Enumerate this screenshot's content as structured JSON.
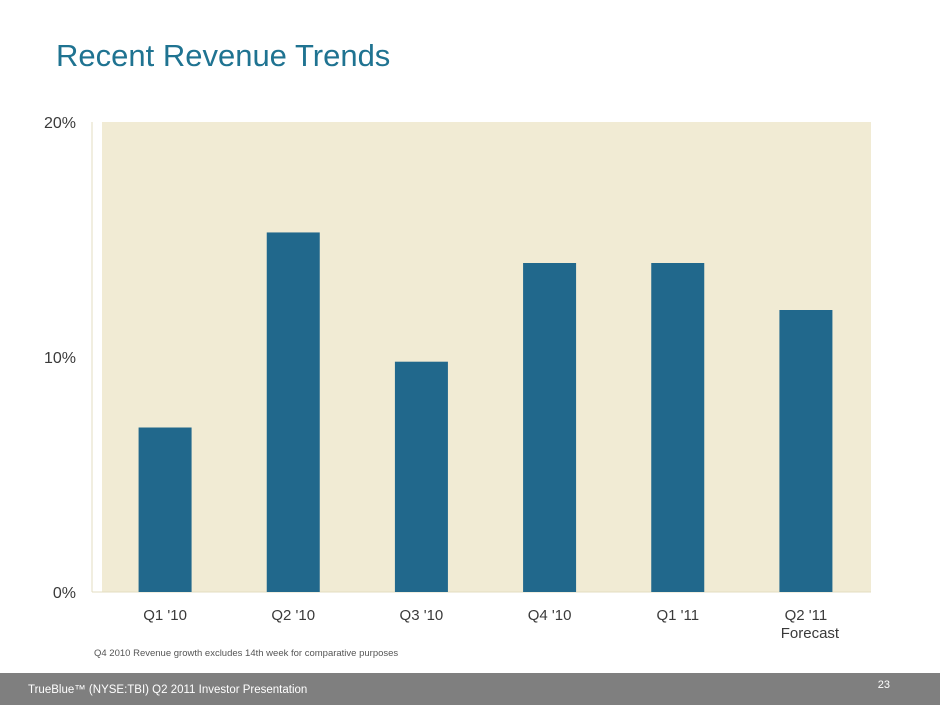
{
  "slide": {
    "title": "Recent Revenue Trends",
    "footnote": "Q4 2010 Revenue growth excludes 14th week for comparative purposes",
    "footer_text": "TrueBlue™ (NYSE:TBI) Q2 2011 Investor Presentation",
    "page_number": "23"
  },
  "colors": {
    "title": "#1f7391",
    "bar": "#21688c",
    "plot_background": "#f1ebd4",
    "footer": "#7f7f7f"
  },
  "chart_data": {
    "type": "bar",
    "categories": [
      "Q1 '10",
      "Q2 '10",
      "Q3 '10",
      "Q4 '10",
      "Q1 '11",
      "Q2 '11"
    ],
    "category_sublabels": [
      "",
      "",
      "",
      "",
      "",
      "Forecast"
    ],
    "values": [
      7.0,
      15.3,
      9.8,
      14.0,
      14.0,
      12.0
    ],
    "ylim": [
      0,
      20
    ],
    "yticks": [
      0,
      10,
      20
    ],
    "ytick_labels": [
      "0%",
      "10%",
      "20%"
    ],
    "unit": "%",
    "grid": false,
    "legend": false
  }
}
